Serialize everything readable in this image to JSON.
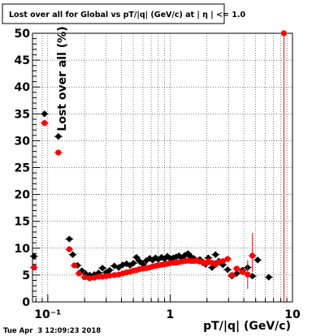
{
  "chart_data": {
    "type": "scatter",
    "title": "Lost over all for Global vs pT/|q| (GeV/c) at |  η | <= 1.0",
    "xlabel": "pT/|q| (GeV/c)",
    "ylabel": "Lost over all (%)",
    "x_scale": "log",
    "xlim": [
      0.075,
      10
    ],
    "ylim": [
      0,
      50
    ],
    "grid": true,
    "x_ticks": [
      {
        "value": 0.1,
        "label": "10⁻¹"
      },
      {
        "value": 1,
        "label": "1"
      },
      {
        "value": 10,
        "label": "10"
      }
    ],
    "y_ticks": [
      0,
      5,
      10,
      15,
      20,
      25,
      30,
      35,
      40,
      45,
      50
    ],
    "series": [
      {
        "color": "#000000",
        "marker": "diamond",
        "points": [
          {
            "x": 0.077,
            "y": 8.5
          },
          {
            "x": 0.094,
            "y": 35.0
          },
          {
            "x": 0.122,
            "y": 30.8
          },
          {
            "x": 0.15,
            "y": 11.7
          },
          {
            "x": 0.16,
            "y": 8.8
          },
          {
            "x": 0.175,
            "y": 6.8
          },
          {
            "x": 0.19,
            "y": 5.8
          },
          {
            "x": 0.205,
            "y": 5.2
          },
          {
            "x": 0.22,
            "y": 5.0
          },
          {
            "x": 0.24,
            "y": 5.1
          },
          {
            "x": 0.26,
            "y": 5.4
          },
          {
            "x": 0.28,
            "y": 6.3
          },
          {
            "x": 0.3,
            "y": 5.5
          },
          {
            "x": 0.32,
            "y": 5.9
          },
          {
            "x": 0.35,
            "y": 6.7
          },
          {
            "x": 0.38,
            "y": 6.4
          },
          {
            "x": 0.41,
            "y": 6.9
          },
          {
            "x": 0.44,
            "y": 7.1
          },
          {
            "x": 0.47,
            "y": 6.8
          },
          {
            "x": 0.5,
            "y": 7.2
          },
          {
            "x": 0.53,
            "y": 8.3
          },
          {
            "x": 0.56,
            "y": 7.6
          },
          {
            "x": 0.6,
            "y": 7.0
          },
          {
            "x": 0.64,
            "y": 7.7
          },
          {
            "x": 0.68,
            "y": 8.1
          },
          {
            "x": 0.72,
            "y": 7.8
          },
          {
            "x": 0.76,
            "y": 8.2
          },
          {
            "x": 0.8,
            "y": 7.9
          },
          {
            "x": 0.85,
            "y": 8.3
          },
          {
            "x": 0.9,
            "y": 8.0
          },
          {
            "x": 0.95,
            "y": 8.5
          },
          {
            "x": 1.0,
            "y": 8.1
          },
          {
            "x": 1.06,
            "y": 8.2
          },
          {
            "x": 1.12,
            "y": 8.4
          },
          {
            "x": 1.18,
            "y": 8.6
          },
          {
            "x": 1.25,
            "y": 8.2
          },
          {
            "x": 1.32,
            "y": 8.7
          },
          {
            "x": 1.4,
            "y": 9.0
          },
          {
            "x": 1.48,
            "y": 8.4
          },
          {
            "x": 1.56,
            "y": 8.1
          },
          {
            "x": 1.65,
            "y": 7.7
          },
          {
            "x": 1.75,
            "y": 7.9
          },
          {
            "x": 1.85,
            "y": 7.3
          },
          {
            "x": 1.95,
            "y": 7.0
          },
          {
            "x": 2.05,
            "y": 8.2
          },
          {
            "x": 2.2,
            "y": 6.4
          },
          {
            "x": 2.35,
            "y": 8.8
          },
          {
            "x": 2.5,
            "y": 7.6
          },
          {
            "x": 2.7,
            "y": 6.9
          },
          {
            "x": 2.95,
            "y": 6.0
          },
          {
            "x": 3.2,
            "y": 4.8
          },
          {
            "x": 3.5,
            "y": 5.3
          },
          {
            "x": 3.9,
            "y": 5.9
          },
          {
            "x": 4.3,
            "y": 6.4
          },
          {
            "x": 4.7,
            "y": 4.8
          },
          {
            "x": 5.2,
            "y": 7.8
          },
          {
            "x": 6.4,
            "y": 4.6
          }
        ]
      },
      {
        "color": "#ff0000",
        "marker": "circle",
        "points": [
          {
            "x": 0.077,
            "y": 6.4
          },
          {
            "x": 0.094,
            "y": 33.3
          },
          {
            "x": 0.122,
            "y": 27.8
          },
          {
            "x": 0.15,
            "y": 9.8
          },
          {
            "x": 0.165,
            "y": 6.8
          },
          {
            "x": 0.18,
            "y": 5.3
          },
          {
            "x": 0.2,
            "y": 4.6
          },
          {
            "x": 0.22,
            "y": 4.4
          },
          {
            "x": 0.24,
            "y": 4.5
          },
          {
            "x": 0.26,
            "y": 4.7
          },
          {
            "x": 0.28,
            "y": 4.7
          },
          {
            "x": 0.3,
            "y": 4.8
          },
          {
            "x": 0.32,
            "y": 4.9
          },
          {
            "x": 0.35,
            "y": 5.0
          },
          {
            "x": 0.38,
            "y": 5.1
          },
          {
            "x": 0.41,
            "y": 5.3
          },
          {
            "x": 0.44,
            "y": 5.5
          },
          {
            "x": 0.47,
            "y": 5.6
          },
          {
            "x": 0.5,
            "y": 5.8
          },
          {
            "x": 0.53,
            "y": 5.9
          },
          {
            "x": 0.56,
            "y": 6.1
          },
          {
            "x": 0.6,
            "y": 6.2
          },
          {
            "x": 0.64,
            "y": 6.3
          },
          {
            "x": 0.68,
            "y": 6.4
          },
          {
            "x": 0.72,
            "y": 6.6
          },
          {
            "x": 0.76,
            "y": 6.7
          },
          {
            "x": 0.8,
            "y": 6.8
          },
          {
            "x": 0.85,
            "y": 6.9
          },
          {
            "x": 0.9,
            "y": 7.0
          },
          {
            "x": 0.95,
            "y": 7.1
          },
          {
            "x": 1.0,
            "y": 7.2
          },
          {
            "x": 1.06,
            "y": 7.3
          },
          {
            "x": 1.12,
            "y": 7.3
          },
          {
            "x": 1.18,
            "y": 7.4
          },
          {
            "x": 1.25,
            "y": 7.5
          },
          {
            "x": 1.32,
            "y": 7.6
          },
          {
            "x": 1.4,
            "y": 7.7
          },
          {
            "x": 1.48,
            "y": 7.6
          },
          {
            "x": 1.56,
            "y": 7.6
          },
          {
            "x": 1.65,
            "y": 7.7
          },
          {
            "x": 1.75,
            "y": 7.5
          },
          {
            "x": 1.85,
            "y": 7.4
          },
          {
            "x": 1.95,
            "y": 7.2
          },
          {
            "x": 2.05,
            "y": 7.6
          },
          {
            "x": 2.2,
            "y": 7.3
          },
          {
            "x": 2.35,
            "y": 7.0
          },
          {
            "x": 2.5,
            "y": 7.4
          },
          {
            "x": 2.7,
            "y": 7.6
          },
          {
            "x": 2.95,
            "y": 8.0
          },
          {
            "x": 3.2,
            "y": 5.0
          },
          {
            "x": 3.5,
            "y": 6.2
          },
          {
            "x": 3.9,
            "y": 5.6
          },
          {
            "x": 4.3,
            "y": 5.1
          },
          {
            "x": 4.7,
            "y": 8.6
          },
          {
            "x": 8.5,
            "y": 50.0
          }
        ]
      }
    ],
    "footer": "Tue Apr  3 12:09:23 2018"
  }
}
